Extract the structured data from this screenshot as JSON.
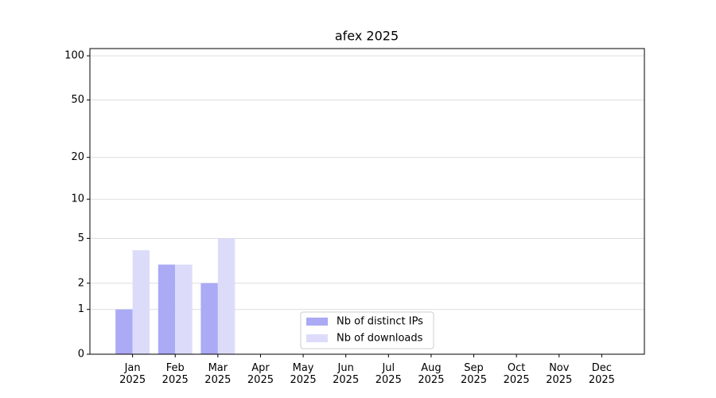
{
  "chart_data": {
    "type": "bar",
    "title": "afex 2025",
    "categories": [
      "Jan\n2025",
      "Feb\n2025",
      "Mar\n2025",
      "Apr\n2025",
      "May\n2025",
      "Jun\n2025",
      "Jul\n2025",
      "Aug\n2025",
      "Sep\n2025",
      "Oct\n2025",
      "Nov\n2025",
      "Dec\n2025"
    ],
    "series": [
      {
        "name": "Nb of distinct IPs",
        "color": "#aaaaf5",
        "values": [
          1,
          3,
          2,
          0,
          0,
          0,
          0,
          0,
          0,
          0,
          0,
          0
        ]
      },
      {
        "name": "Nb of downloads",
        "color": "#dcdcfa",
        "values": [
          4,
          3,
          5,
          0,
          0,
          0,
          0,
          0,
          0,
          0,
          0,
          0
        ]
      }
    ],
    "yscale": "log1p",
    "ylim": [
      0,
      112
    ],
    "yticks": [
      0,
      1,
      2,
      5,
      10,
      20,
      50,
      100
    ],
    "grid": true,
    "legend": "lower center"
  }
}
